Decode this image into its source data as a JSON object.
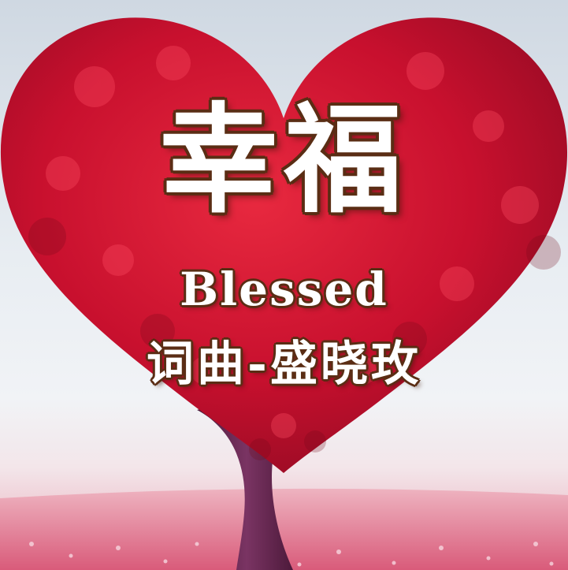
{
  "cover": {
    "title_cn": "幸福",
    "title_en": "Blessed",
    "credits": "词曲-盛晓玫"
  },
  "colors": {
    "foliage": "#c8102e",
    "foliage_dark": "#8e0a22",
    "trunk": "#6b2a55",
    "sky": "#e8edf2",
    "field": "#e27a93",
    "text": "#ffffff",
    "text_outline": "#5a2d14"
  }
}
